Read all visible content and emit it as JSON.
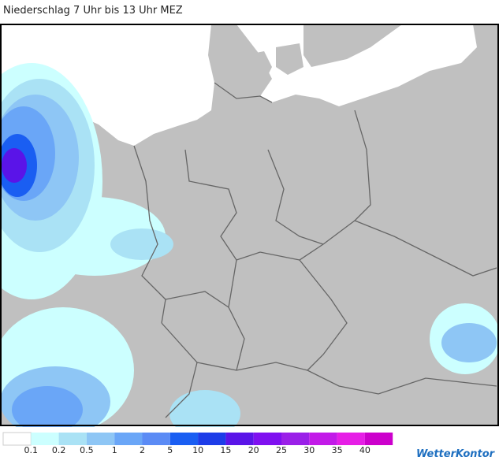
{
  "title": "Niederschlag 7 Uhr bis 13 Uhr MEZ",
  "legend": {
    "colors": [
      "#ffffff",
      "#ccffff",
      "#aae2f5",
      "#8ec6f5",
      "#6aa6f7",
      "#5b8bf5",
      "#1a5ef2",
      "#1d3ce8",
      "#5a14e8",
      "#7f10f0",
      "#9a20e8",
      "#c21ae8",
      "#e61ee6",
      "#cc00cc"
    ],
    "labels": [
      "0.1",
      "0.2",
      "0.5",
      "1",
      "2",
      "5",
      "10",
      "15",
      "20",
      "25",
      "30",
      "35",
      "40"
    ]
  },
  "brand": "WetterKontor"
}
